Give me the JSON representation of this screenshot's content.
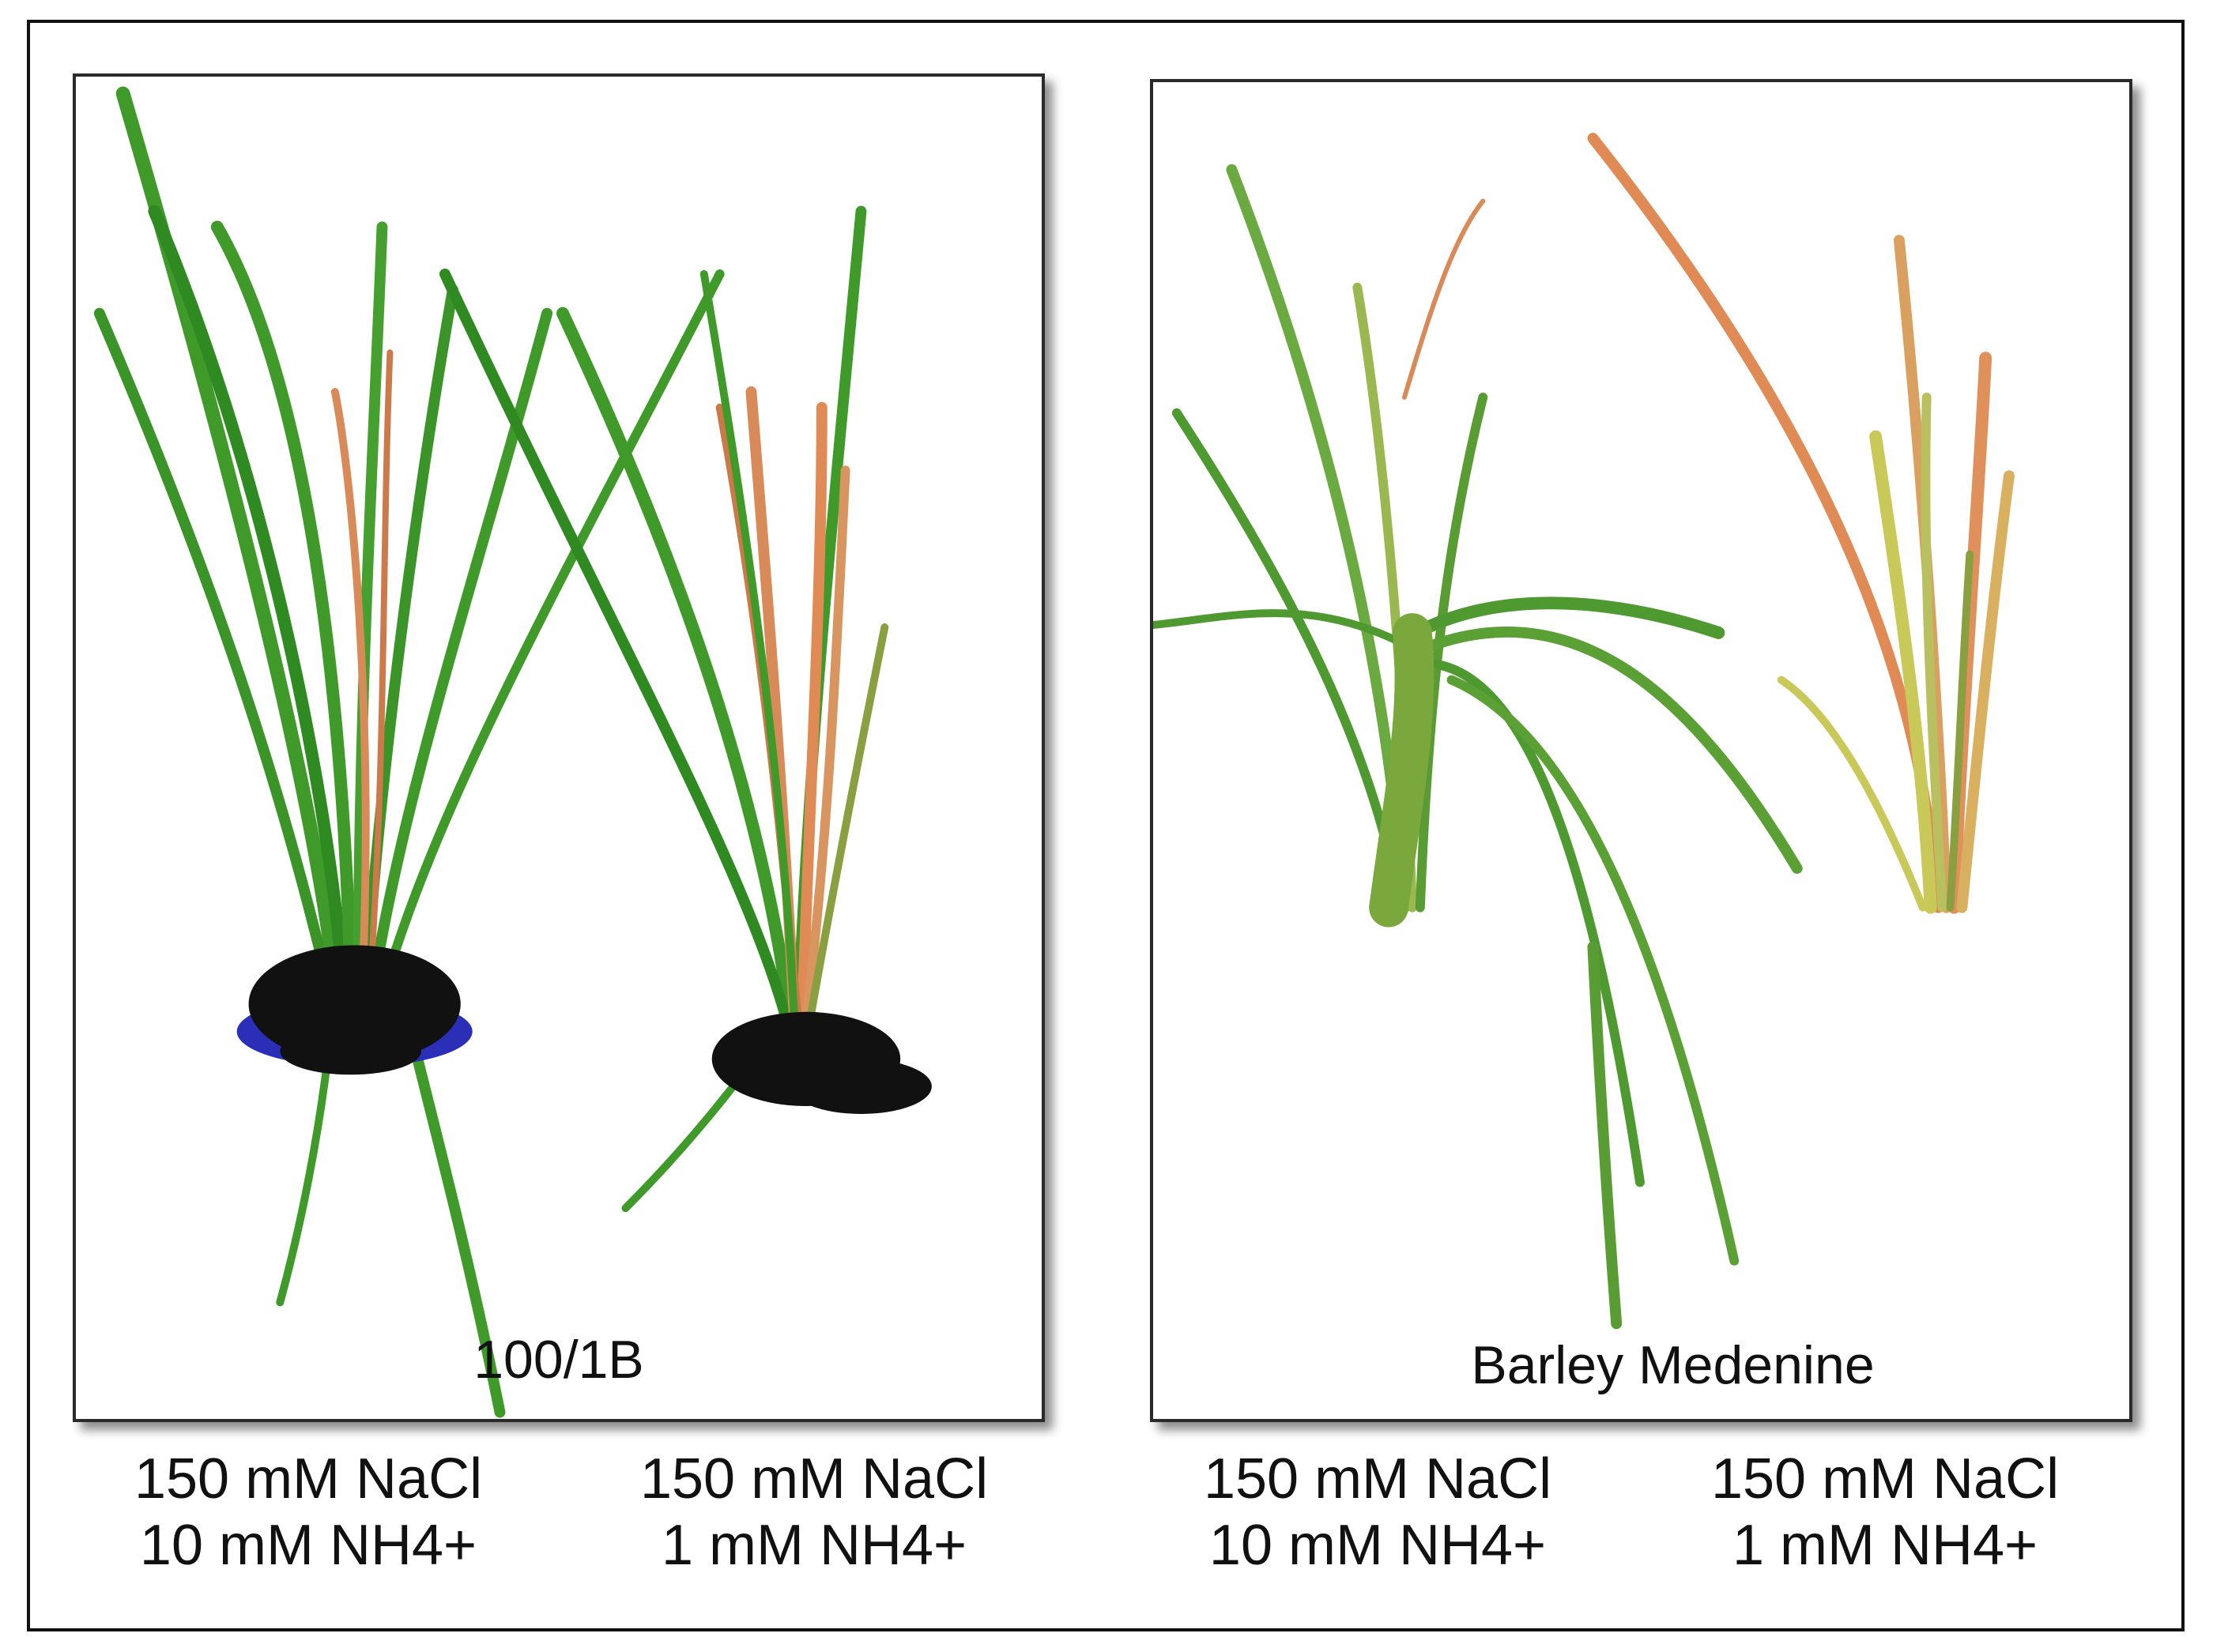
{
  "panels": [
    {
      "label": "100/1B",
      "treatments": [
        {
          "nacl": "150 mM NaCl",
          "nh4": "10 mM NH4+"
        },
        {
          "nacl": "150 mM NaCl",
          "nh4": "1 mM NH4+"
        }
      ]
    },
    {
      "label": "Barley Medenine",
      "treatments": [
        {
          "nacl": "150 mM NaCl",
          "nh4": "10 mM NH4+"
        },
        {
          "nacl": "150 mM NaCl",
          "nh4": "1 mM NH4+"
        }
      ]
    }
  ],
  "colors": {
    "leaf_green": "#3f9a2a",
    "leaf_dark": "#2a7a1c",
    "leaf_yellow": "#c9c95a",
    "leaf_orange": "#e08a55",
    "soil": "#111111",
    "pot_ring": "#2b2fb8"
  }
}
